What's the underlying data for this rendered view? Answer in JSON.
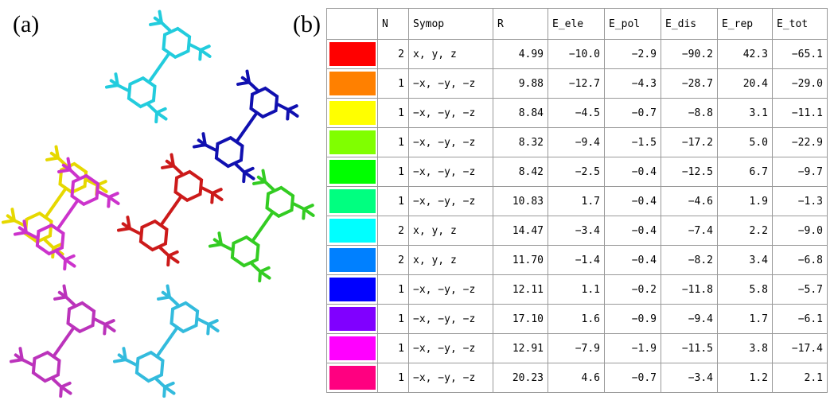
{
  "panels": {
    "a": "(a)",
    "b": "(b)"
  },
  "table": {
    "header": [
      "N",
      "Symop",
      "R",
      "E_ele",
      "E_pol",
      "E_dis",
      "E_rep",
      "E_tot"
    ],
    "rows": [
      {
        "color": "#ff0000",
        "cells": [
          "2",
          "x, y, z",
          "4.99",
          "−10.0",
          "−2.9",
          "−90.2",
          "42.3",
          "−65.1"
        ]
      },
      {
        "color": "#ff8000",
        "cells": [
          "1",
          "−x, −y, −z",
          "9.88",
          "−12.7",
          "−4.3",
          "−28.7",
          "20.4",
          "−29.0"
        ]
      },
      {
        "color": "#ffff00",
        "cells": [
          "1",
          "−x, −y, −z",
          "8.84",
          "−4.5",
          "−0.7",
          "−8.8",
          "3.1",
          "−11.1"
        ]
      },
      {
        "color": "#80ff00",
        "cells": [
          "1",
          "−x, −y, −z",
          "8.32",
          "−9.4",
          "−1.5",
          "−17.2",
          "5.0",
          "−22.9"
        ]
      },
      {
        "color": "#00ff00",
        "cells": [
          "1",
          "−x, −y, −z",
          "8.42",
          "−2.5",
          "−0.4",
          "−12.5",
          "6.7",
          "−9.7"
        ]
      },
      {
        "color": "#00ff80",
        "cells": [
          "1",
          "−x, −y, −z",
          "10.83",
          "1.7",
          "−0.4",
          "−4.6",
          "1.9",
          "−1.3"
        ]
      },
      {
        "color": "#00ffff",
        "cells": [
          "2",
          "x, y, z",
          "14.47",
          "−3.4",
          "−0.4",
          "−7.4",
          "2.2",
          "−9.0"
        ]
      },
      {
        "color": "#0080ff",
        "cells": [
          "2",
          "x, y, z",
          "11.70",
          "−1.4",
          "−0.4",
          "−8.2",
          "3.4",
          "−6.8"
        ]
      },
      {
        "color": "#0000ff",
        "cells": [
          "1",
          "−x, −y, −z",
          "12.11",
          "1.1",
          "−0.2",
          "−11.8",
          "5.8",
          "−5.7"
        ]
      },
      {
        "color": "#8000ff",
        "cells": [
          "1",
          "−x, −y, −z",
          "17.10",
          "1.6",
          "−0.9",
          "−9.4",
          "1.7",
          "−6.1"
        ]
      },
      {
        "color": "#ff00ff",
        "cells": [
          "1",
          "−x, −y, −z",
          "12.91",
          "−7.9",
          "−1.9",
          "−11.5",
          "3.8",
          "−17.4"
        ]
      },
      {
        "color": "#ff0080",
        "cells": [
          "1",
          "−x, −y, −z",
          "20.23",
          "4.6",
          "−0.7",
          "−3.4",
          "1.2",
          "2.1"
        ]
      }
    ]
  }
}
